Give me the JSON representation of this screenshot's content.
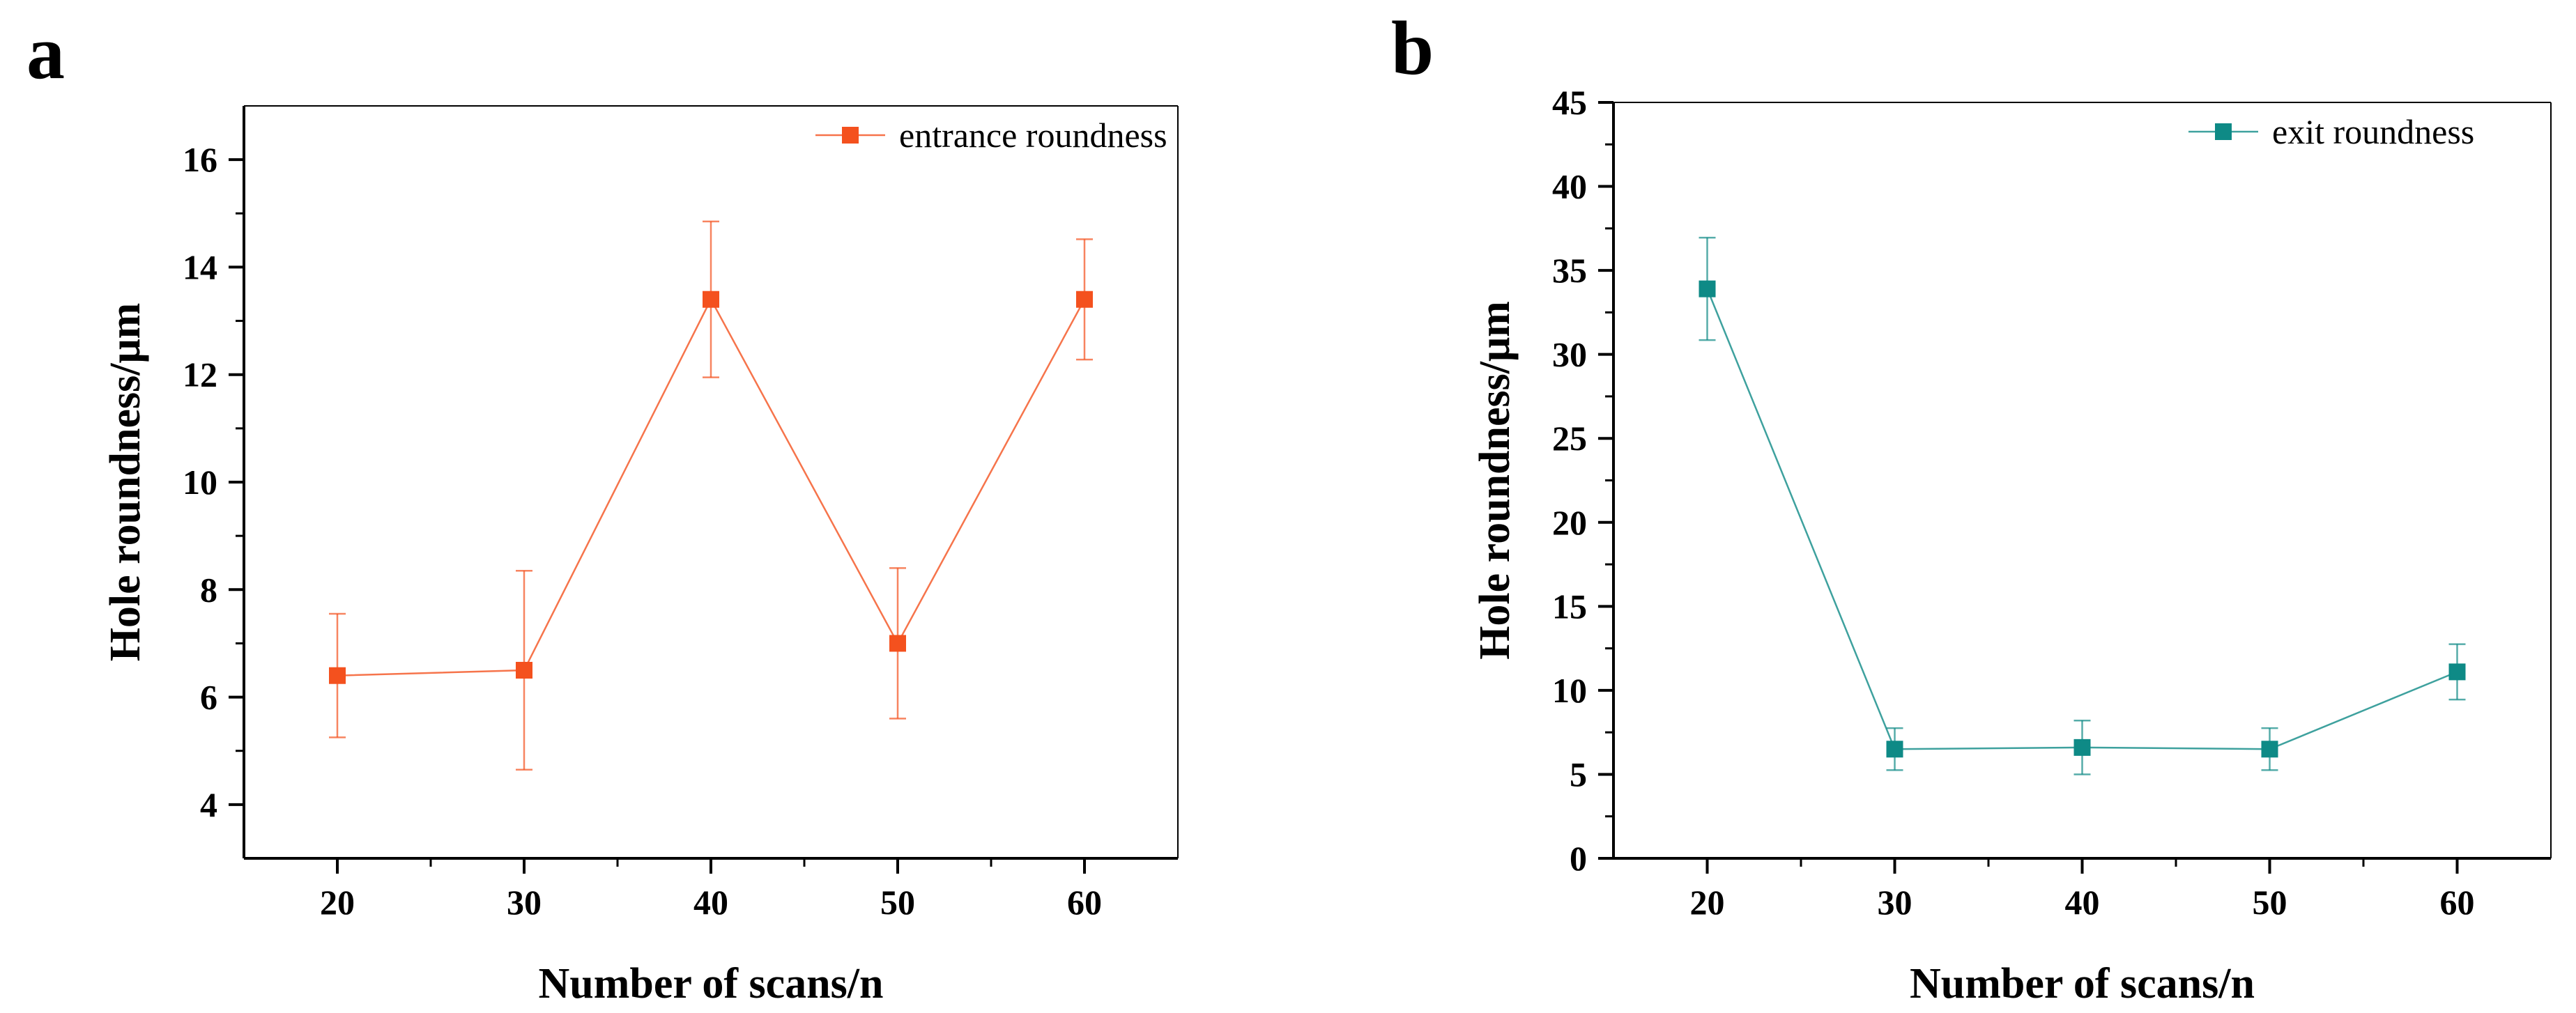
{
  "figure": {
    "panel_letters": [
      "a",
      "b"
    ]
  },
  "chart_data": [
    {
      "type": "line",
      "panel": "a",
      "title": "",
      "xlabel": "Number of scans/n",
      "ylabel": "Hole roundness/μm",
      "x": [
        20,
        30,
        40,
        50,
        60
      ],
      "xlim": [
        15,
        65
      ],
      "ylim": [
        3,
        17
      ],
      "xticks": [
        20,
        30,
        40,
        50,
        60
      ],
      "yticks": [
        4,
        6,
        8,
        10,
        12,
        14,
        16
      ],
      "grid": false,
      "legend_position": "top-right",
      "series": [
        {
          "name": "entrance roundness",
          "color": "#f4511e",
          "values": [
            6.4,
            6.5,
            13.4,
            7.0,
            13.4
          ],
          "error": [
            1.15,
            1.85,
            1.45,
            1.4,
            1.12
          ]
        }
      ]
    },
    {
      "type": "line",
      "panel": "b",
      "title": "",
      "xlabel": "Number of scans/n",
      "ylabel": "Hole roundness/μm",
      "x": [
        20,
        30,
        40,
        50,
        60
      ],
      "xlim": [
        15,
        65
      ],
      "ylim": [
        0,
        45
      ],
      "xticks": [
        20,
        30,
        40,
        50,
        60
      ],
      "yticks": [
        0,
        5,
        10,
        15,
        20,
        25,
        30,
        35,
        40,
        45
      ],
      "grid": false,
      "legend_position": "top-right",
      "series": [
        {
          "name": "exit roundness",
          "color": "#0e8a86",
          "values": [
            33.9,
            6.5,
            6.6,
            6.5,
            11.1
          ],
          "error": [
            3.05,
            1.25,
            1.6,
            1.25,
            1.65
          ]
        }
      ]
    }
  ]
}
